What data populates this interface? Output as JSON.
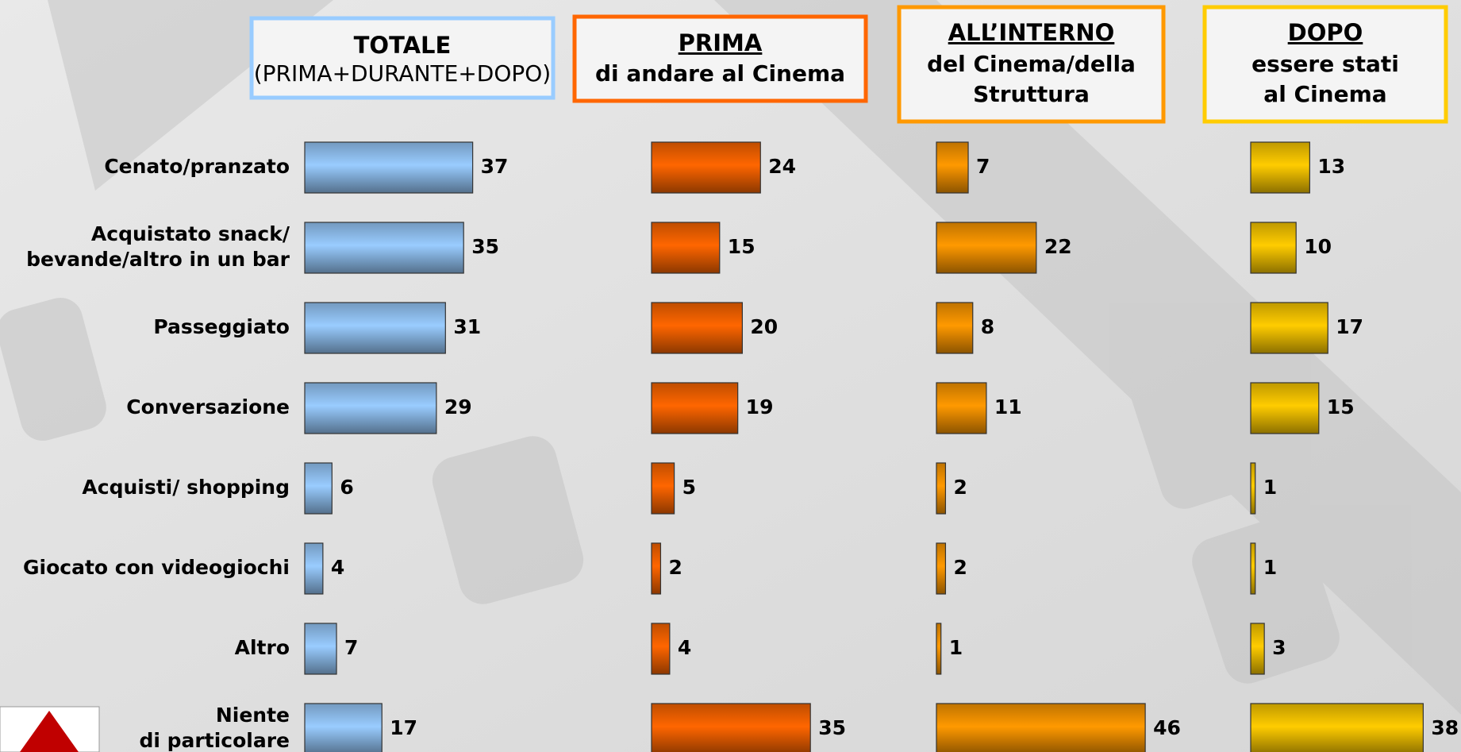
{
  "chart_data": [
    {
      "type": "bar",
      "title": "TOTALE",
      "subtitle": [
        "(PRIMA+DURANTE+DOPO)"
      ],
      "title_underline": false,
      "subtitle_bold": false,
      "border_color": "#99ccff",
      "color": "#99ccff",
      "categories": [
        [
          "Cenato/pranzato"
        ],
        [
          "Acquistato snack/",
          "bevande/altro in un bar"
        ],
        [
          "Passeggiato"
        ],
        [
          "Conversazione"
        ],
        [
          "Acquisti/ shopping"
        ],
        [
          "Giocato con videogiochi"
        ],
        [
          "Altro"
        ],
        [
          "Niente",
          "di particolare"
        ]
      ],
      "values": [
        37,
        35,
        31,
        29,
        6,
        4,
        7,
        17
      ]
    },
    {
      "type": "bar",
      "title": "PRIMA",
      "subtitle": [
        "di andare al Cinema"
      ],
      "title_underline": true,
      "subtitle_bold": true,
      "border_color": "#ff6600",
      "color": "#ff6600",
      "values": [
        24,
        15,
        20,
        19,
        5,
        2,
        4,
        35
      ]
    },
    {
      "type": "bar",
      "title": "ALL’INTERNO",
      "subtitle": [
        "del Cinema/della",
        "Struttura"
      ],
      "title_underline": true,
      "subtitle_bold": true,
      "border_color": "#ff9900",
      "color": "#ff9900",
      "values": [
        7,
        22,
        8,
        11,
        2,
        2,
        1,
        46
      ]
    },
    {
      "type": "bar",
      "title": "DOPO",
      "subtitle": [
        "essere stati",
        "al Cinema"
      ],
      "title_underline": true,
      "subtitle_bold": true,
      "border_color": "#ffcc00",
      "color": "#ffcc00",
      "values": [
        13,
        10,
        17,
        15,
        1,
        1,
        3,
        38
      ]
    }
  ]
}
